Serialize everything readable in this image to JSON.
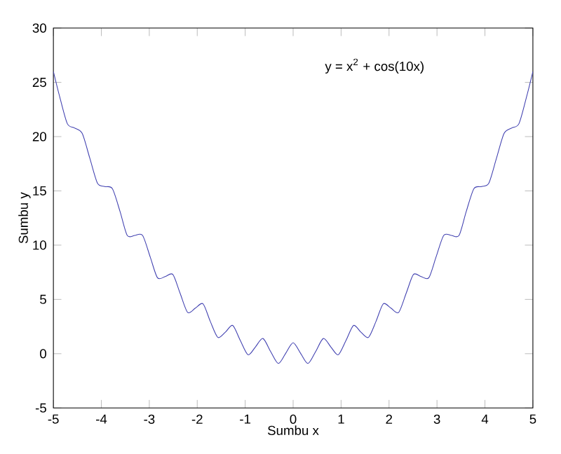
{
  "chart_data": {
    "type": "line",
    "xlabel": "Sumbu x",
    "ylabel": "Sumbu y",
    "annotations": [
      "y = x$^{2}$ + cos(10x)"
    ],
    "xlim": [
      -5,
      5
    ],
    "ylim": [
      -5,
      30
    ],
    "xticks": [
      -5,
      -4,
      -3,
      -2,
      -1,
      0,
      1,
      2,
      3,
      4,
      5
    ],
    "yticks": [
      -5,
      0,
      5,
      10,
      15,
      20,
      25,
      30
    ],
    "grid": false,
    "marker": "none",
    "line_style": "solid",
    "series": [
      {
        "color": "#4040b0",
        "x": [
          -5,
          -4.87,
          -4.71,
          -4.56,
          -4.4,
          -4.24,
          -4.08,
          -3.93,
          -3.77,
          -3.61,
          -3.46,
          -3.3,
          -3.14,
          -2.98,
          -2.83,
          -2.67,
          -2.51,
          -2.36,
          -2.2,
          -2.04,
          -1.88,
          -1.73,
          -1.57,
          -1.41,
          -1.26,
          -1.1,
          -0.94,
          -0.79,
          -0.63,
          -0.47,
          -0.31,
          -0.16,
          0,
          0.16,
          0.31,
          0.47,
          0.63,
          0.79,
          0.94,
          1.1,
          1.26,
          1.41,
          1.57,
          1.73,
          1.88,
          2.04,
          2.2,
          2.36,
          2.51,
          2.67,
          2.83,
          2.98,
          3.14,
          3.3,
          3.46,
          3.61,
          3.77,
          3.93,
          4.08,
          4.24,
          4.4,
          4.56,
          4.71,
          4.87,
          5
        ],
        "values": [
          26.0,
          23.7,
          21.2,
          20.8,
          20.3,
          18.0,
          15.7,
          15.4,
          15.2,
          13.1,
          10.9,
          10.9,
          10.9,
          8.9,
          7.0,
          7.1,
          7.3,
          5.6,
          3.8,
          4.2,
          4.6,
          3.0,
          1.5,
          2.0,
          2.6,
          1.2,
          -0.1,
          0.6,
          1.4,
          0.2,
          -0.9,
          0.0,
          1.0,
          0.0,
          -0.9,
          0.2,
          1.4,
          0.6,
          -0.1,
          1.2,
          2.6,
          2.0,
          1.5,
          3.0,
          4.6,
          4.2,
          3.8,
          5.6,
          7.3,
          7.1,
          7.0,
          8.9,
          10.9,
          10.9,
          10.9,
          13.1,
          15.2,
          15.4,
          15.7,
          18.0,
          20.3,
          20.8,
          21.2,
          23.7,
          26.0
        ]
      }
    ]
  }
}
